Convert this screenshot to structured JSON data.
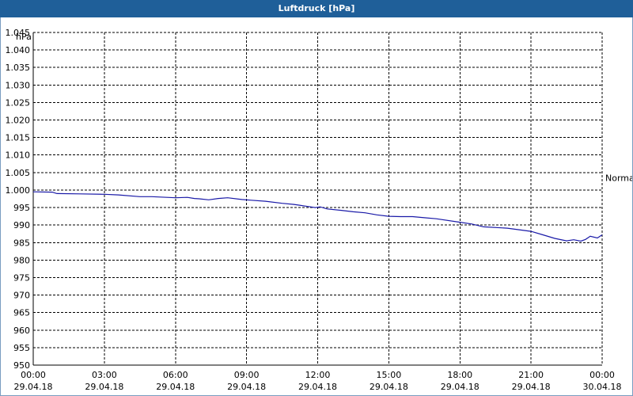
{
  "window": {
    "title": "Luftdruck [hPa]"
  },
  "chart_data": {
    "type": "line",
    "title": "Luftdruck [hPa]",
    "ylabel": "hPa",
    "xlabel": "",
    "ylim": [
      950,
      1045
    ],
    "y_ticks": [
      950,
      955,
      960,
      965,
      970,
      975,
      980,
      985,
      990,
      995,
      1000,
      1005,
      1010,
      1015,
      1020,
      1025,
      1030,
      1035,
      1040,
      1045
    ],
    "y_tick_labels": [
      "950",
      "955",
      "960",
      "965",
      "970",
      "975",
      "980",
      "985",
      "990",
      "995",
      "1.000",
      "1.005",
      "1.010",
      "1.015",
      "1.020",
      "1.025",
      "1.030",
      "1.035",
      "1.040",
      "1.045"
    ],
    "x_unit": "hours since 29.04.18 00:00",
    "xlim": [
      0,
      24
    ],
    "x_ticks": [
      {
        "time": "00:00",
        "date": "29.04.18"
      },
      {
        "time": "03:00",
        "date": "29.04.18"
      },
      {
        "time": "06:00",
        "date": "29.04.18"
      },
      {
        "time": "09:00",
        "date": "29.04.18"
      },
      {
        "time": "12:00",
        "date": "29.04.18"
      },
      {
        "time": "15:00",
        "date": "29.04.18"
      },
      {
        "time": "18:00",
        "date": "29.04.18"
      },
      {
        "time": "21:00",
        "date": "29.04.18"
      },
      {
        "time": "00:00",
        "date": "30.04.18"
      }
    ],
    "grid": true,
    "reference_line": {
      "label": "Normal",
      "value": 1003.5
    },
    "series": [
      {
        "color": "#1a1aa8",
        "x": [
          0,
          0.8,
          1,
          2,
          3,
          3.6,
          4.5,
          5,
          6,
          6.5,
          6.8,
          7,
          7.4,
          7.8,
          8.2,
          8.8,
          9.2,
          9.8,
          10.5,
          11,
          11.5,
          11.9,
          12.1,
          12.4,
          13,
          13.5,
          14,
          14.5,
          15,
          15.5,
          16,
          16.5,
          17,
          18,
          18.5,
          19,
          20,
          21,
          21.5,
          22,
          22.5,
          22.8,
          23.1,
          23.3,
          23.5,
          23.8,
          24
        ],
        "y": [
          999.5,
          999.4,
          999,
          998.9,
          998.8,
          998.6,
          998.1,
          998.1,
          997.8,
          997.9,
          997.6,
          997.5,
          997.2,
          997.6,
          997.8,
          997.3,
          997.1,
          996.8,
          996.2,
          995.9,
          995.4,
          995.0,
          995.2,
          994.6,
          994.2,
          993.8,
          993.5,
          992.9,
          992.5,
          992.4,
          992.4,
          992.1,
          991.8,
          990.8,
          990.3,
          989.5,
          989.1,
          988.2,
          987.2,
          986.2,
          985.5,
          985.8,
          985.4,
          985.9,
          986.8,
          986.3,
          987.2
        ]
      }
    ]
  }
}
